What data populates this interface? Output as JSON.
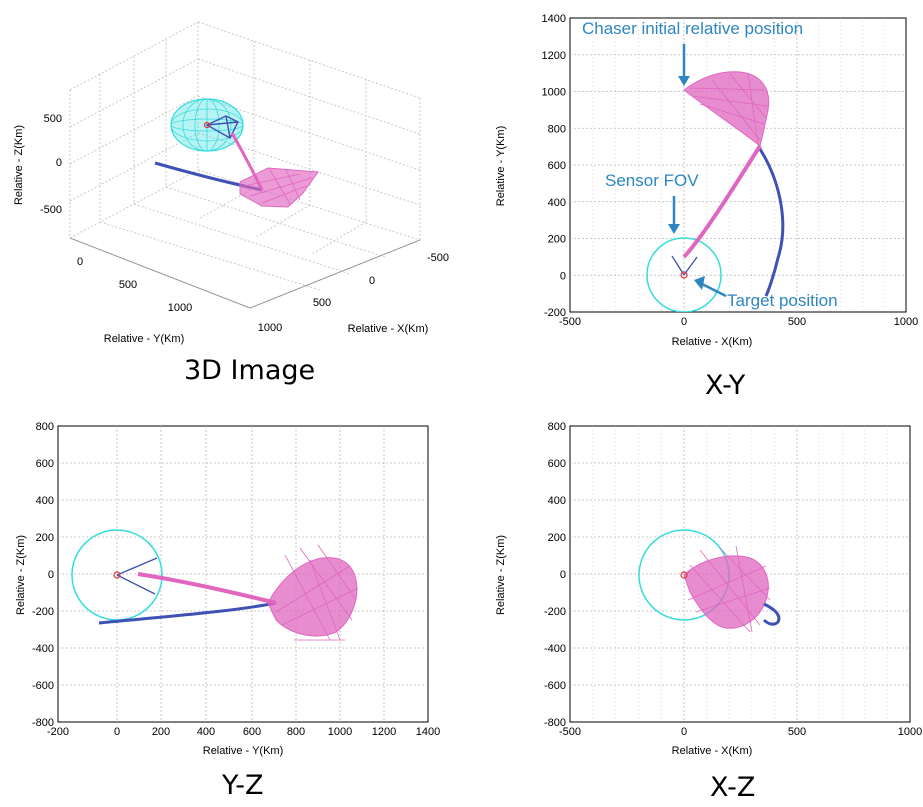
{
  "panels": {
    "p3d": {
      "caption": "3D Image",
      "z_label": "Relative - Z(Km)",
      "y_label": "Relative - Y(Km)",
      "x_label": "Relative - X(Km)",
      "z_ticks": [
        "500",
        "0",
        "-500"
      ],
      "y_ticks": [
        "0",
        "500",
        "1000"
      ],
      "x_ticks": [
        "-500",
        "0",
        "500",
        "1000"
      ]
    },
    "xy": {
      "caption": "X-Y",
      "x_label": "Relative - X(Km)",
      "y_label": "Relative - Y(Km)",
      "x_ticks": [
        "-500",
        "0",
        "500",
        "1000"
      ],
      "y_ticks": [
        "1400",
        "1200",
        "1000",
        "800",
        "600",
        "400",
        "200",
        "0",
        "-200"
      ],
      "annotations": {
        "chaser": "Chaser initial relative position",
        "sensor": "Sensor FOV",
        "target": "Target position"
      }
    },
    "yz": {
      "caption": "Y-Z",
      "x_label": "Relative - Y(Km)",
      "y_label": "Relative - Z(Km)",
      "x_ticks": [
        "-200",
        "0",
        "200",
        "400",
        "600",
        "800",
        "1000",
        "1200",
        "1400"
      ],
      "y_ticks": [
        "800",
        "600",
        "400",
        "200",
        "0",
        "-200",
        "-400",
        "-600",
        "-800"
      ]
    },
    "xz": {
      "caption": "X-Z",
      "x_label": "Relative - X(Km)",
      "y_label": "Relative - Z(Km)",
      "x_ticks": [
        "-500",
        "0",
        "500",
        "1000"
      ],
      "y_ticks": [
        "800",
        "600",
        "400",
        "200",
        "0",
        "-200",
        "-400",
        "-600",
        "-800"
      ]
    }
  },
  "colors": {
    "trajectory_blue": "#3f51b5",
    "trajectory_pink": "#e066c0",
    "fov_circle": "#33dddd",
    "annotation": "#2e86c1",
    "grid": "#b8b8b8"
  },
  "chart_data": [
    {
      "type": "line",
      "panel": "3D Image",
      "xlabel": "Relative - X(Km)",
      "ylabel": "Relative - Y(Km)",
      "zlabel": "Relative - Z(Km)",
      "xlim": [
        -500,
        1000
      ],
      "ylim": [
        0,
        1000
      ],
      "zlim": [
        -500,
        500
      ]
    },
    {
      "type": "line",
      "panel": "X-Y",
      "xlabel": "Relative - X(Km)",
      "ylabel": "Relative - Y(Km)",
      "xlim": [
        -500,
        1000
      ],
      "ylim": [
        -200,
        1400
      ],
      "grid": true,
      "series": [
        {
          "role": "blue-trajectory",
          "x": [
            410,
            420,
            430,
            425,
            410,
            385,
            365
          ],
          "y": [
            700,
            560,
            400,
            250,
            120,
            20,
            -80
          ]
        },
        {
          "role": "pink-cluster",
          "x": [
            0,
            120,
            250,
            380,
            410,
            0
          ],
          "y": [
            1000,
            1040,
            1050,
            1020,
            690,
            1000
          ]
        },
        {
          "role": "pink-approach",
          "x": [
            410,
            300,
            200,
            100,
            0
          ],
          "y": [
            700,
            530,
            380,
            230,
            100
          ]
        },
        {
          "role": "fov-circle",
          "center": [
            0,
            0
          ],
          "radius": 200
        }
      ],
      "annotations": [
        {
          "text": "Chaser initial relative position",
          "x": 0,
          "y": 1000
        },
        {
          "text": "Sensor FOV",
          "x": -60,
          "y": 130
        },
        {
          "text": "Target position",
          "x": 0,
          "y": 0
        }
      ]
    },
    {
      "type": "line",
      "panel": "Y-Z",
      "xlabel": "Relative - Y(Km)",
      "ylabel": "Relative - Z(Km)",
      "xlim": [
        -200,
        1400
      ],
      "ylim": [
        -800,
        800
      ],
      "grid": true,
      "series": [
        {
          "role": "blue-trajectory",
          "x": [
            -70,
            100,
            300,
            500,
            680
          ],
          "y": [
            -260,
            -250,
            -230,
            -200,
            -160
          ]
        },
        {
          "role": "pink-approach",
          "x": [
            100,
            300,
            500,
            680
          ],
          "y": [
            0,
            -40,
            -90,
            -160
          ]
        },
        {
          "role": "pink-cluster",
          "x": [
            680,
            800,
            950,
            1080,
            1050,
            900,
            780,
            680
          ],
          "y": [
            -160,
            60,
            80,
            0,
            -280,
            -330,
            -300,
            -160
          ]
        },
        {
          "role": "fov-circle",
          "center": [
            0,
            0
          ],
          "radius": 200
        }
      ]
    },
    {
      "type": "line",
      "panel": "X-Z",
      "xlabel": "Relative - X(Km)",
      "ylabel": "Relative - Z(Km)",
      "xlim": [
        -500,
        1000
      ],
      "ylim": [
        -800,
        800
      ],
      "grid": true,
      "series": [
        {
          "role": "pink-cluster",
          "x": [
            0,
            150,
            300,
            380,
            300,
            200,
            100,
            0
          ],
          "y": [
            0,
            80,
            30,
            -150,
            -280,
            -300,
            -150,
            0
          ]
        },
        {
          "role": "blue-trajectory",
          "x": [
            380,
            410,
            420,
            400,
            370
          ],
          "y": [
            -160,
            -170,
            -210,
            -240,
            -250
          ]
        },
        {
          "role": "fov-circle",
          "center": [
            0,
            0
          ],
          "radius": 200
        }
      ]
    }
  ]
}
